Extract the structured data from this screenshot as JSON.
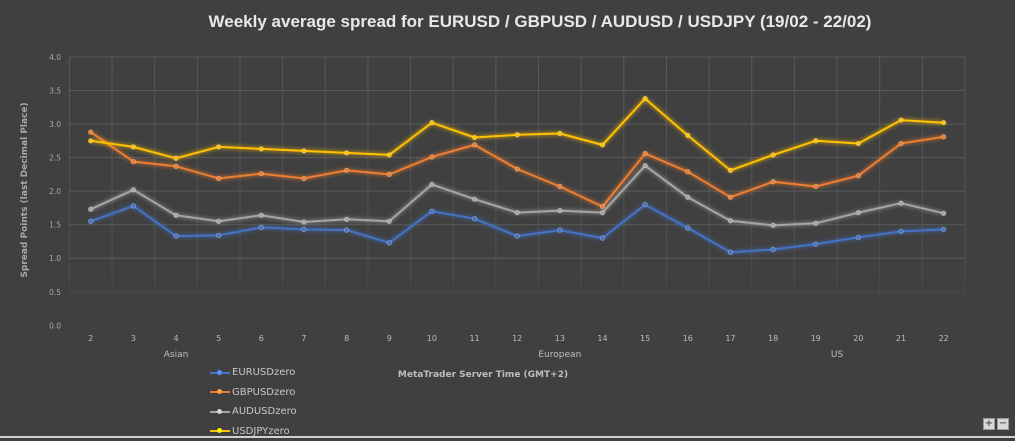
{
  "chart_data": {
    "type": "line",
    "title": "Weekly average spread for EURUSD / GBPUSD / AUDUSD / USDJPY  (19/02 - 22/02)",
    "xlabel": "MetaTrader Server Time (GMT+2)",
    "ylabel": "Spread Points  (last Decimal Place)",
    "ylim": [
      0,
      4.0
    ],
    "yticks": [
      "0.0",
      "0.5",
      "1.0",
      "1.5",
      "2.0",
      "2.5",
      "3.0",
      "3.5",
      "4.0"
    ],
    "grid": true,
    "legend": "bottom-left",
    "categories": [
      "2",
      "3",
      "4",
      "5",
      "6",
      "7",
      "8",
      "9",
      "10",
      "11",
      "12",
      "13",
      "14",
      "15",
      "16",
      "17",
      "18",
      "19",
      "20",
      "21",
      "22"
    ],
    "sessions": [
      {
        "label": "Asian",
        "at": "4"
      },
      {
        "label": "European",
        "at": "13"
      },
      {
        "label": "US",
        "at": "19.5"
      }
    ],
    "series": [
      {
        "name": "EURUSDzero",
        "color": "#4472c4",
        "values": [
          1.55,
          1.78,
          1.33,
          1.34,
          1.46,
          1.43,
          1.42,
          1.23,
          1.7,
          1.59,
          1.33,
          1.42,
          1.3,
          1.8,
          1.45,
          1.09,
          1.13,
          1.21,
          1.31,
          1.4,
          1.43
        ]
      },
      {
        "name": "GBPUSDzero",
        "color": "#ed7d31",
        "values": [
          2.88,
          2.44,
          2.37,
          2.19,
          2.26,
          2.19,
          2.31,
          2.25,
          2.51,
          2.69,
          2.33,
          2.07,
          1.77,
          2.56,
          2.29,
          1.91,
          2.14,
          2.07,
          2.23,
          2.71,
          2.81
        ]
      },
      {
        "name": "AUDUSDzero",
        "color": "#a5a5a5",
        "values": [
          1.73,
          2.02,
          1.64,
          1.55,
          1.64,
          1.54,
          1.58,
          1.55,
          2.1,
          1.88,
          1.68,
          1.71,
          1.68,
          2.38,
          1.91,
          1.56,
          1.49,
          1.52,
          1.68,
          1.82,
          1.67
        ]
      },
      {
        "name": "USDJPYzero",
        "color": "#ffc000",
        "values": [
          2.75,
          2.66,
          2.49,
          2.66,
          2.63,
          2.6,
          2.57,
          2.54,
          3.02,
          2.8,
          2.84,
          2.86,
          2.69,
          3.38,
          2.83,
          2.31,
          2.54,
          2.75,
          2.71,
          3.06,
          3.02
        ]
      }
    ]
  },
  "controls": {
    "zoom_in": "+",
    "zoom_out": "−"
  }
}
